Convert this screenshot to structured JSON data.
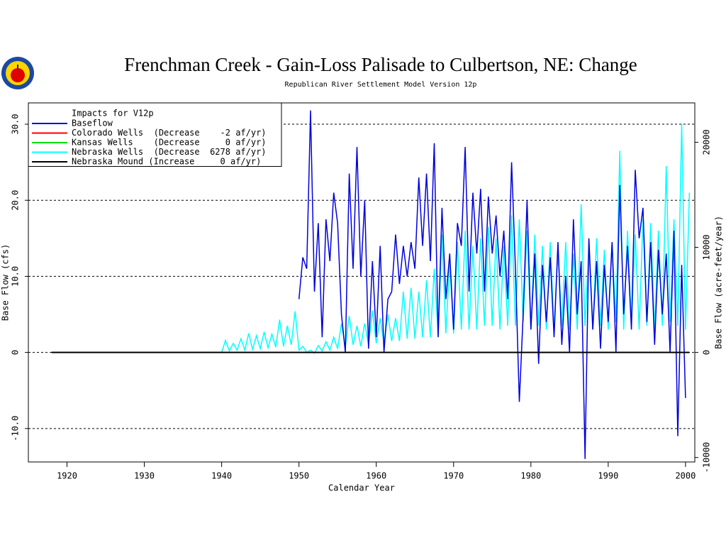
{
  "chart_data": {
    "type": "line",
    "title": "Frenchman Creek - Gain-Loss Palisade to Culbertson, NE: Change",
    "subtitle": "Republican River Settlement Model Version 12p",
    "xlabel": "Calendar Year",
    "ylabel": "Base Flow (cfs)",
    "y2label": "Base Flow (acre-feet/year)",
    "legend_title": "Impacts for V12p",
    "legend": "upper left",
    "grid": true,
    "xlim": [
      1915,
      2001.2
    ],
    "xticks": [
      1920,
      1930,
      1940,
      1950,
      1960,
      1970,
      1980,
      1990,
      2000
    ],
    "ylim": [
      -14.4,
      32.8
    ],
    "yticks": [
      {
        "value": -10,
        "label": "-10.0"
      },
      0,
      {
        "value": 10,
        "label": "10.0"
      },
      {
        "value": 20,
        "label": "20.0"
      },
      {
        "value": 30,
        "label": "30.0"
      }
    ],
    "y2lim": [
      -10425,
      23746
    ],
    "y2ticks": [
      -10000,
      0,
      10000,
      20000
    ],
    "series": [
      {
        "name": "Baseflow",
        "color": "#0000dd",
        "x": [
          1950,
          1950.5,
          1951,
          1951.5,
          1952,
          1952.5,
          1953,
          1953.5,
          1954,
          1954.5,
          1955,
          1955.5,
          1956,
          1956.5,
          1957,
          1957.5,
          1958,
          1958.5,
          1959,
          1959.5,
          1960,
          1960.5,
          1961,
          1961.5,
          1962,
          1962.5,
          1963,
          1963.5,
          1964,
          1964.5,
          1965,
          1965.5,
          1966,
          1966.5,
          1967,
          1967.5,
          1968,
          1968.5,
          1969,
          1969.5,
          1970,
          1970.5,
          1971,
          1971.5,
          1972,
          1972.5,
          1973,
          1973.5,
          1974,
          1974.5,
          1975,
          1975.5,
          1976,
          1976.5,
          1977,
          1977.5,
          1978,
          1978.5,
          1979,
          1979.5,
          1980,
          1980.5,
          1981,
          1981.5,
          1982,
          1982.5,
          1983,
          1983.5,
          1984,
          1984.5,
          1985,
          1985.5,
          1986,
          1986.5,
          1987,
          1987.5,
          1988,
          1988.5,
          1989,
          1989.5,
          1990,
          1990.5,
          1991,
          1991.5,
          1992,
          1992.5,
          1993,
          1993.5,
          1994,
          1994.5,
          1995,
          1995.5,
          1996,
          1996.5,
          1997,
          1997.5,
          1998,
          1998.5,
          1999,
          1999.5,
          2000
        ],
        "values": [
          7.0,
          12.5,
          11.0,
          31.8,
          8.0,
          17.0,
          2.0,
          17.5,
          12.0,
          21.0,
          17.0,
          5.0,
          0.0,
          23.5,
          11.0,
          27.0,
          10.0,
          20.0,
          0.5,
          12.0,
          2.0,
          14.0,
          0.0,
          7.0,
          8.0,
          15.5,
          9.0,
          14.0,
          10.0,
          14.5,
          11.0,
          23.0,
          14.0,
          23.5,
          12.0,
          27.5,
          2.0,
          19.0,
          7.0,
          13.0,
          3.0,
          17.0,
          14.0,
          27.0,
          8.0,
          21.0,
          13.0,
          21.5,
          8.0,
          20.5,
          13.0,
          18.0,
          10.0,
          16.0,
          7.0,
          25.0,
          11.0,
          -6.5,
          5.0,
          20.0,
          3.0,
          13.0,
          -1.5,
          11.5,
          4.0,
          12.5,
          2.0,
          14.5,
          1.0,
          10.0,
          0.0,
          17.5,
          5.0,
          12.0,
          -14.0,
          15.0,
          3.0,
          12.0,
          0.5,
          11.5,
          4.0,
          14.5,
          0.0,
          22.0,
          5.0,
          14.0,
          3.0,
          24.0,
          15.0,
          19.0,
          4.0,
          14.5,
          1.0,
          13.5,
          5.0,
          13.0,
          0.0,
          16.0,
          -11.0,
          11.5,
          -6.0
        ]
      },
      {
        "name": "Colorado Wells  (Decrease    -2 af/yr)",
        "color": "#ff0000",
        "x": [
          1918,
          2000.5
        ],
        "values": [
          0,
          0
        ]
      },
      {
        "name": "Kansas Wells    (Decrease     0 af/yr)",
        "color": "#00dd00",
        "x": [
          1918,
          2000.5
        ],
        "values": [
          0,
          0
        ]
      },
      {
        "name": "Nebraska Wells  (Decrease  6278 af/yr)",
        "color": "#00ffff",
        "x": [
          1940,
          1940.5,
          1941,
          1941.5,
          1942,
          1942.5,
          1943,
          1943.5,
          1944,
          1944.5,
          1945,
          1945.5,
          1946,
          1946.5,
          1947,
          1947.5,
          1948,
          1948.5,
          1949,
          1949.5,
          1950,
          1950.5,
          1951,
          1951.5,
          1952,
          1952.5,
          1953,
          1953.5,
          1954,
          1954.5,
          1955,
          1955.5,
          1956,
          1956.5,
          1957,
          1957.5,
          1958,
          1958.5,
          1959,
          1959.5,
          1960,
          1960.5,
          1961,
          1961.5,
          1962,
          1962.5,
          1963,
          1963.5,
          1964,
          1964.5,
          1965,
          1965.5,
          1966,
          1966.5,
          1967,
          1967.5,
          1968,
          1968.5,
          1969,
          1969.5,
          1970,
          1970.5,
          1971,
          1971.5,
          1972,
          1972.5,
          1973,
          1973.5,
          1974,
          1974.5,
          1975,
          1975.5,
          1976,
          1976.5,
          1977,
          1977.5,
          1978,
          1978.5,
          1979,
          1979.5,
          1980,
          1980.5,
          1981,
          1981.5,
          1982,
          1982.5,
          1983,
          1983.5,
          1984,
          1984.5,
          1985,
          1985.5,
          1986,
          1986.5,
          1987,
          1987.5,
          1988,
          1988.5,
          1989,
          1989.5,
          1990,
          1990.5,
          1991,
          1991.5,
          1992,
          1992.5,
          1993,
          1993.5,
          1994,
          1994.5,
          1995,
          1995.5,
          1996,
          1996.5,
          1997,
          1997.5,
          1998,
          1998.5,
          1999,
          1999.5,
          2000,
          2000.5
        ],
        "values": [
          0,
          1.6,
          0.2,
          1.2,
          0.3,
          1.8,
          0.3,
          2.5,
          0.4,
          2.2,
          0.5,
          2.7,
          0.6,
          2.4,
          0.7,
          4.3,
          0.8,
          3.5,
          1.0,
          5.4,
          0.3,
          0.8,
          0.0,
          0.3,
          -0.1,
          0.9,
          0.2,
          1.4,
          0.3,
          2.0,
          0.5,
          3.8,
          0.8,
          4.8,
          1.0,
          3.5,
          0.8,
          3.8,
          1.0,
          5.5,
          1.2,
          4.5,
          1.2,
          5.0,
          1.5,
          4.5,
          1.5,
          8.0,
          1.8,
          8.5,
          1.8,
          8.0,
          2.0,
          9.5,
          2.0,
          11.0,
          2.2,
          15.5,
          2.5,
          12.0,
          2.5,
          14.5,
          3.0,
          16.0,
          3.0,
          14.0,
          3.0,
          15.0,
          3.5,
          16.5,
          3.5,
          15.0,
          3.0,
          14.0,
          3.5,
          18.0,
          3.5,
          17.5,
          4.0,
          16.0,
          3.0,
          15.5,
          3.5,
          14.0,
          3.0,
          14.5,
          3.0,
          13.5,
          3.5,
          14.5,
          3.0,
          13.0,
          3.0,
          19.5,
          3.5,
          14.0,
          3.0,
          15.0,
          3.5,
          13.5,
          3.0,
          14.5,
          4.0,
          26.5,
          3.0,
          16.0,
          3.5,
          15.5,
          3.0,
          17.5,
          3.5,
          17.0,
          3.0,
          16.0,
          3.5,
          24.5,
          4.0,
          17.5,
          3.5,
          30.0,
          3.0,
          21.0
        ]
      },
      {
        "name": "Nebraska Mound (Increase     0 af/yr)",
        "color": "#000000",
        "x": [
          1918,
          2000.5
        ],
        "values": [
          0,
          0
        ]
      }
    ]
  }
}
